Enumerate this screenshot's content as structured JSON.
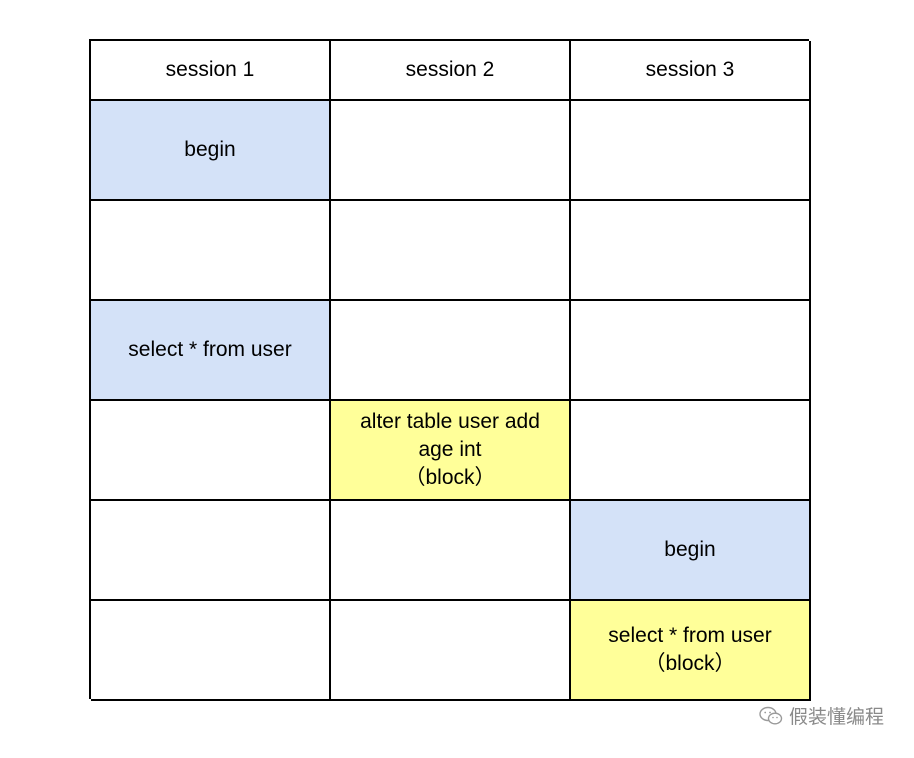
{
  "columns": [
    "session 1",
    "session 2",
    "session 3"
  ],
  "rows": [
    [
      {
        "text": "begin",
        "color": "blue"
      },
      {
        "text": "",
        "color": "none"
      },
      {
        "text": "",
        "color": "none"
      }
    ],
    [
      {
        "text": "",
        "color": "none"
      },
      {
        "text": "",
        "color": "none"
      },
      {
        "text": "",
        "color": "none"
      }
    ],
    [
      {
        "text": "select * from user",
        "color": "blue"
      },
      {
        "text": "",
        "color": "none"
      },
      {
        "text": "",
        "color": "none"
      }
    ],
    [
      {
        "text": "",
        "color": "none"
      },
      {
        "text": "alter table user add\nage int\n（block）",
        "color": "yellow"
      },
      {
        "text": "",
        "color": "none"
      }
    ],
    [
      {
        "text": "",
        "color": "none"
      },
      {
        "text": "",
        "color": "none"
      },
      {
        "text": "begin",
        "color": "blue"
      }
    ],
    [
      {
        "text": "",
        "color": "none"
      },
      {
        "text": "",
        "color": "none"
      },
      {
        "text": "select * from user\n（block）",
        "color": "yellow"
      }
    ]
  ],
  "colors": {
    "blue": "#d4e2f8",
    "yellow": "#ffff99",
    "border": "#000000"
  },
  "watermark": {
    "icon": "wechat-icon",
    "text": "假装懂编程"
  }
}
